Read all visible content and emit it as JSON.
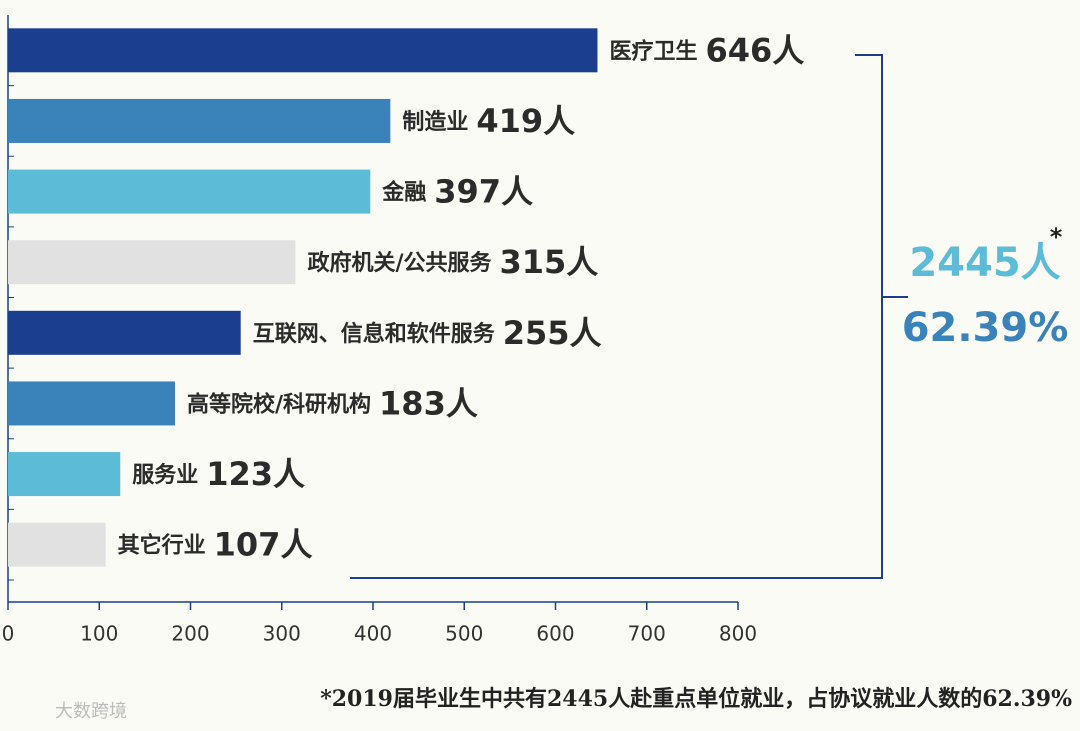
{
  "chart_data": {
    "type": "barh",
    "categories": [
      "医疗卫生",
      "制造业",
      "金融",
      "政府机关/公共服务",
      "互联网、信息和软件服务",
      "高等院校/科研机构",
      "服务业",
      "其它行业"
    ],
    "values": [
      646,
      419,
      397,
      315,
      255,
      183,
      123,
      107
    ],
    "value_labels": [
      "646人",
      "419人",
      "397人",
      "315人",
      "255人",
      "183人",
      "123人",
      "107人"
    ],
    "colors": [
      "#1b3f8e",
      "#3a83ba",
      "#5cbbd6",
      "#e1e1e1",
      "#1b3f8e",
      "#3a83ba",
      "#5cbbd6",
      "#e1e1e1"
    ],
    "xlim": [
      0,
      800
    ],
    "xticks": [
      0,
      100,
      200,
      300,
      400,
      500,
      600,
      700,
      800
    ],
    "annotations": [
      "2445人",
      "*",
      "62.39%"
    ],
    "footnote": "*2019届毕业生中共有2445人赴重点单位就业，占协议就业人数的62.39%",
    "watermark": "大数跨境"
  }
}
